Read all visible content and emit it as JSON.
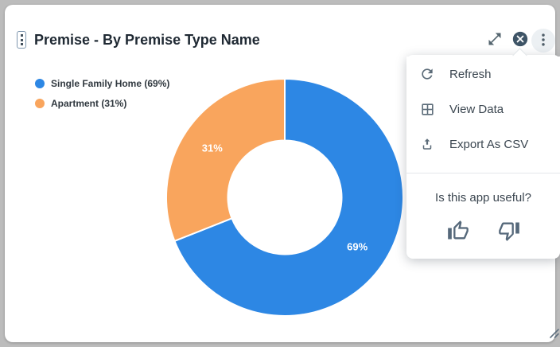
{
  "widget": {
    "title": "Premise - By Premise Type Name"
  },
  "chart_data": {
    "type": "pie",
    "variant": "donut",
    "title": "Premise - By Premise Type Name",
    "categories": [
      "Single Family Home",
      "Apartment"
    ],
    "values": [
      69,
      31
    ],
    "value_unit": "%",
    "slice_labels": [
      "69%",
      "31%"
    ],
    "colors": [
      "#2d87e4",
      "#f9a55d"
    ],
    "start_angle_deg": 0,
    "direction": "clockwise",
    "inner_radius_ratio": 0.48,
    "legend_position": "top-left",
    "slice_label_color": "#ffffff"
  },
  "legend": {
    "items": [
      {
        "label": "Single Family Home (69%)",
        "color": "#2d87e4"
      },
      {
        "label": "Apartment (31%)",
        "color": "#f9a55d"
      }
    ]
  },
  "menu": {
    "items": [
      {
        "label": "Refresh",
        "icon": "refresh-icon"
      },
      {
        "label": "View Data",
        "icon": "table-grid-icon"
      },
      {
        "label": "Export As CSV",
        "icon": "upload-icon"
      }
    ],
    "feedback_question": "Is this app useful?",
    "feedback_icons": [
      "thumbs-up-icon",
      "thumbs-down-icon"
    ]
  },
  "icons": {
    "title_handle": "drag-handle-icon",
    "header": [
      "open-in-full-icon",
      "close-circle-icon",
      "more-vert-icon"
    ],
    "resize": "resize-grip-icon"
  },
  "theme": {
    "card_bg": "#ffffff",
    "frame_bg": "#bcbcbc",
    "title_color": "#1f2933",
    "menu_text_color": "#3b4650",
    "icon_color": "#57track"
  }
}
